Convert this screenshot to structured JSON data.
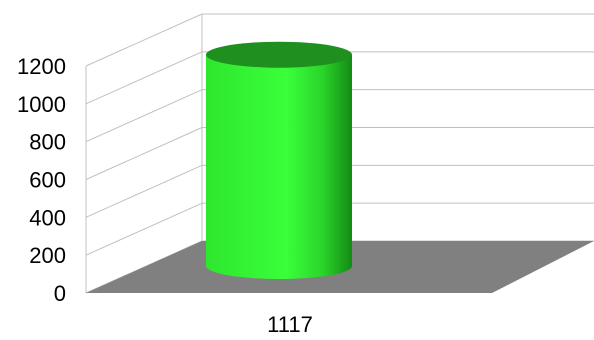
{
  "chart_data": {
    "type": "bar",
    "style": "3d-cylinder",
    "categories": [
      "1117"
    ],
    "values": [
      1117
    ],
    "ylim": [
      0,
      1200
    ],
    "yticks": [
      "0",
      "200",
      "400",
      "600",
      "800",
      "1000",
      "1200"
    ],
    "grid": true,
    "legend": "none"
  },
  "colors": {
    "bar": "#33ff33",
    "bar_dark": "#1a9e1a",
    "bar_top": "#1f8f1f",
    "floor": "#808080",
    "grid": "#c0c0c0"
  }
}
